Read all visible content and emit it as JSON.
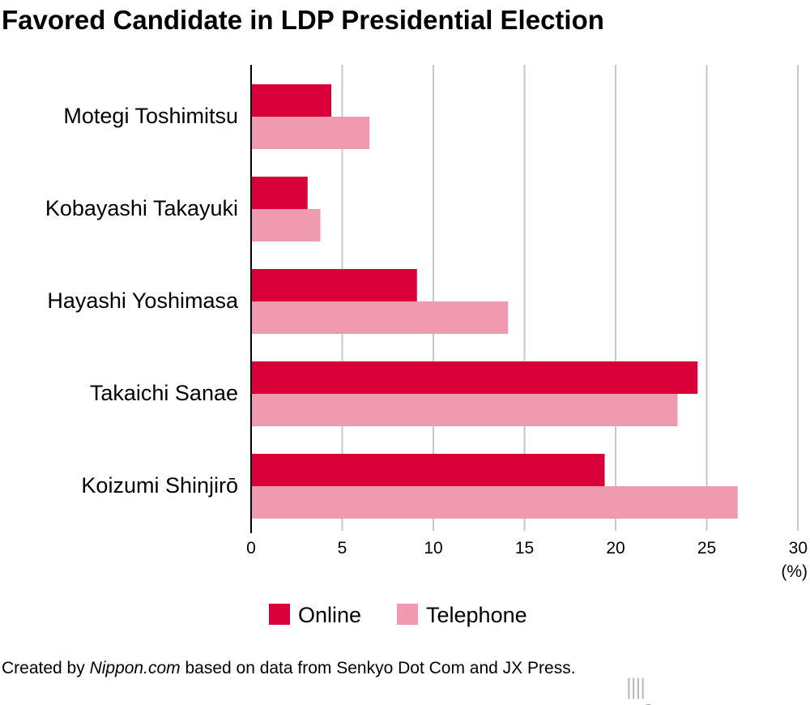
{
  "title": "Favored Candidate in LDP Presidential Election",
  "credit": {
    "prefix": "Created by ",
    "site": "Nippon.com",
    "suffix": " based on data from Senkyo Dot Com and JX Press."
  },
  "logo": {
    "main": "nippon",
    "dot": ".",
    "tld": "com"
  },
  "chart_data": {
    "type": "bar",
    "orientation": "horizontal",
    "categories": [
      "Motegi Toshimitsu",
      "Kobayashi Takayuki",
      "Hayashi Yoshimasa",
      "Takaichi Sanae",
      "Koizumi Shinjirō"
    ],
    "series": [
      {
        "name": "Online",
        "color": "#d9003a",
        "values": [
          4.4,
          3.1,
          9.1,
          24.5,
          19.4
        ]
      },
      {
        "name": "Telephone",
        "color": "#ef9aaf",
        "values": [
          6.5,
          3.8,
          14.1,
          23.4,
          26.7
        ]
      }
    ],
    "xlim": [
      0,
      30
    ],
    "xticks": [
      "0",
      "5",
      "10",
      "15",
      "20",
      "25",
      "30"
    ],
    "xunit": "(%)",
    "grid": true,
    "legend": "bottom"
  }
}
